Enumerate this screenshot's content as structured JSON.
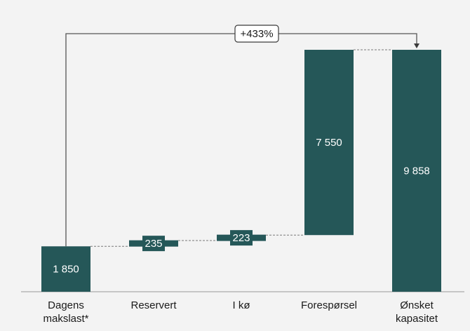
{
  "chart_data": {
    "type": "waterfall",
    "title": "",
    "xlabel": "",
    "ylabel": "",
    "ylim": [
      0,
      11250
    ],
    "grid": false,
    "legend": "none",
    "bar_color": "#255758",
    "background": "#f3f3f3",
    "categories": [
      [
        "Dagens",
        "makslast*"
      ],
      [
        "Reservert"
      ],
      [
        "I kø"
      ],
      [
        "Forespørsel"
      ],
      [
        "Ønsket",
        "kapasitet"
      ]
    ],
    "bars": [
      {
        "kind": "total",
        "base": 0,
        "value": 1850,
        "label": "1 850"
      },
      {
        "kind": "delta",
        "base": 1850,
        "value": 235,
        "label": "235"
      },
      {
        "kind": "delta",
        "base": 2085,
        "value": 223,
        "label": "223"
      },
      {
        "kind": "delta",
        "base": 2308,
        "value": 7550,
        "label": "7 550"
      },
      {
        "kind": "total",
        "base": 0,
        "value": 9858,
        "label": "9 858"
      }
    ],
    "annotation": {
      "text": "+433%",
      "from": 0,
      "to": 4
    }
  }
}
